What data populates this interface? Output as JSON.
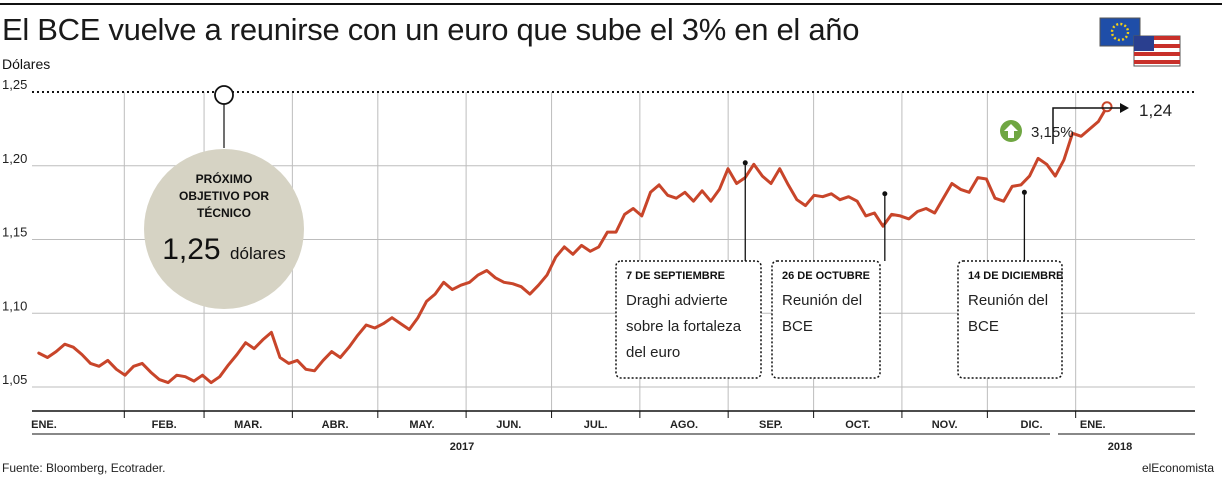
{
  "header": {
    "title": "El BCE vuelve a reunirse con un euro que sube el 3% en el año",
    "unit": "Dólares"
  },
  "footer": {
    "source": "Fuente: Bloomberg, Ecotrader.",
    "brand": "elEconomista"
  },
  "icons": {
    "flag_eu": "eu-flag-icon",
    "flag_us": "us-flag-icon",
    "arrow_up": "arrow-up-icon"
  },
  "colors": {
    "line": "#c8452a",
    "bubble": "#d6d3c4",
    "grid": "#bdbdbd",
    "arrow": "#6fa642"
  },
  "chart_data": {
    "type": "line",
    "title": "El BCE vuelve a reunirse con un euro que sube el 3% en el año",
    "ylabel": "Dólares",
    "ylim": [
      1.04,
      1.26
    ],
    "yticks": [
      "1,05",
      "1,10",
      "1,15",
      "1,20",
      "1,25"
    ],
    "ytick_values": [
      1.05,
      1.1,
      1.15,
      1.2,
      1.25
    ],
    "months": [
      "ENE.",
      "FEB.",
      "MAR.",
      "ABR.",
      "MAY.",
      "JUN.",
      "JUL.",
      "AGO.",
      "SEP.",
      "OCT.",
      "NOV.",
      "DIC.",
      "ENE."
    ],
    "years": [
      "2017",
      "2018"
    ],
    "grid": true,
    "target_line": 1.25,
    "series": [
      {
        "values": [
          1.073,
          1.07,
          1.074,
          1.079,
          1.077,
          1.072,
          1.066,
          1.064,
          1.068,
          1.062,
          1.058,
          1.064,
          1.066,
          1.06,
          1.055,
          1.053,
          1.058,
          1.057,
          1.054,
          1.058,
          1.053,
          1.057,
          1.065,
          1.072,
          1.08,
          1.076,
          1.082,
          1.087,
          1.07,
          1.066,
          1.068,
          1.062,
          1.061,
          1.068,
          1.074,
          1.07,
          1.077,
          1.085,
          1.092,
          1.09,
          1.093,
          1.097,
          1.093,
          1.089,
          1.097,
          1.108,
          1.113,
          1.121,
          1.116,
          1.119,
          1.121,
          1.126,
          1.129,
          1.124,
          1.121,
          1.12,
          1.118,
          1.113,
          1.119,
          1.126,
          1.138,
          1.145,
          1.14,
          1.146,
          1.142,
          1.145,
          1.155,
          1.155,
          1.167,
          1.171,
          1.166,
          1.182,
          1.187,
          1.18,
          1.178,
          1.182,
          1.176,
          1.183,
          1.176,
          1.184,
          1.198,
          1.188,
          1.192,
          1.201,
          1.193,
          1.188,
          1.198,
          1.187,
          1.177,
          1.173,
          1.18,
          1.179,
          1.181,
          1.177,
          1.179,
          1.176,
          1.166,
          1.168,
          1.159,
          1.167,
          1.166,
          1.164,
          1.169,
          1.171,
          1.168,
          1.178,
          1.188,
          1.184,
          1.182,
          1.192,
          1.191,
          1.178,
          1.176,
          1.186,
          1.187,
          1.193,
          1.205,
          1.201,
          1.193,
          1.204,
          1.222,
          1.22,
          1.225,
          1.23,
          1.24
        ],
        "first": "2017-01-02",
        "last": "2018-01-12"
      }
    ],
    "annotations": [
      {
        "date": "2017-09-07",
        "value": 1.202,
        "label": "7 DE SEPTIEMBRE",
        "text": [
          "Draghi advierte",
          "sobre la fortaleza",
          "del euro"
        ]
      },
      {
        "date": "2017-10-26",
        "value": 1.181,
        "label": "26 DE OCTUBRE",
        "text": [
          "Reunión del",
          "BCE"
        ]
      },
      {
        "date": "2017-12-14",
        "value": 1.182,
        "label": "14 DE DICIEMBRE",
        "text": [
          "Reunión del",
          "BCE"
        ]
      }
    ],
    "target_bubble": {
      "lines": [
        "PRÓXIMO",
        "OBJETIVO POR",
        "TÉCNICO"
      ],
      "value": "1,25",
      "unit": "dólares"
    },
    "end_label": "1,24",
    "change_label": "3,15%"
  }
}
